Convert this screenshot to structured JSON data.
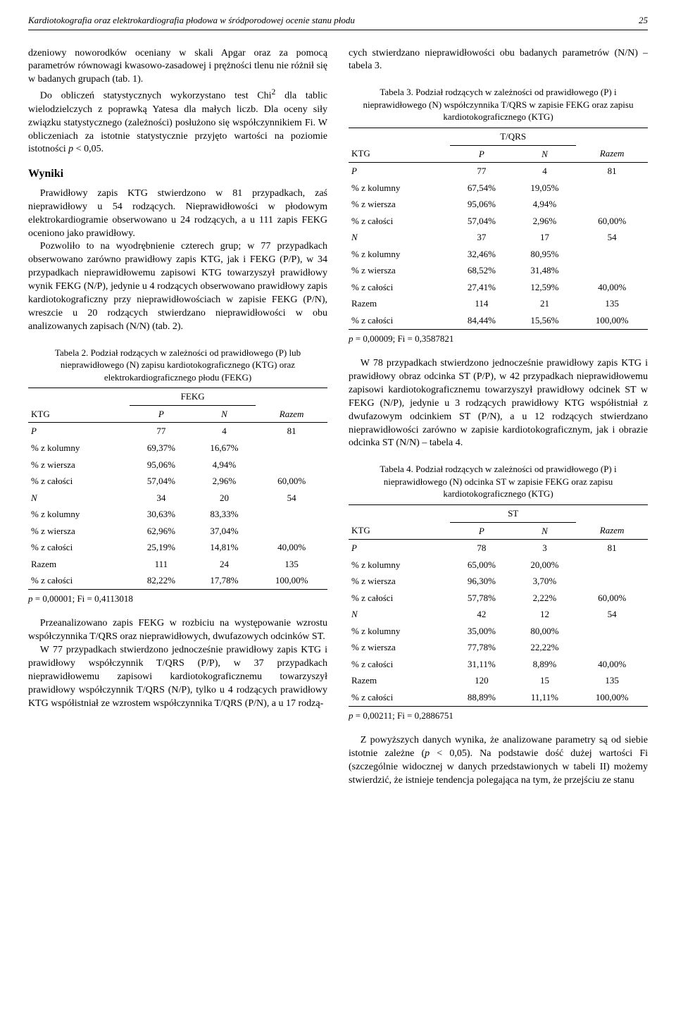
{
  "header": {
    "title": "Kardiotokografia oraz elektrokardiografia płodowa w śródporodowej ocenie stanu płodu",
    "page": "25"
  },
  "col1": {
    "para1": "dzeniowy noworodków oceniany w skali Apgar oraz za pomocą parametrów równowagi kwasowo-zasadowej i prężności tlenu nie różnił się w badanych grupach (tab. 1).",
    "para2a": "Do obliczeń statystycznych wykorzystano test Chi",
    "para2sup": "2",
    "para2b": " dla tablic wielodzielczych z poprawką Yatesa dla małych liczb. Dla oceny siły związku statystycznego (zależności) posłużono się współczynnikiem Fi. W obliczeniach za istotnie statystycznie przyjęto wartości na poziomie istotności ",
    "para2p": "p",
    "para2c": " < 0,05.",
    "wyniki_heading": "Wyniki",
    "para3": "Prawidłowy zapis KTG stwierdzono w 81 przypadkach, zaś nieprawidłowy u 54 rodzących. Nieprawidłowości w płodowym elektrokardiogramie obserwowano u 24 rodzących, a u 111 zapis FEKG oceniono jako prawidłowy.",
    "para4": "Pozwoliło to na wyodrębnienie czterech grup; w 77 przypadkach obserwowano zarówno prawidłowy zapis KTG, jak i FEKG (P/P), w 34 przypadkach nieprawidłowemu zapisowi KTG towarzyszył prawidłowy wynik FEKG (N/P), jedynie u 4 rodzących obserwowano prawidłowy zapis kardiotokograficzny przy nieprawidłowościach w zapisie FEKG (P/N), wreszcie u 20 rodzących stwierdzano nieprawidłowości w obu analizowanych zapisach (N/N) (tab. 2).",
    "table2_caption": "Tabela 2. Podział rodzących w zależności od prawidłowego (P) lub nieprawidłowego (N) zapisu kardiotokograficznego (KTG) oraz elektrokardiograficznego płodu (FEKG)",
    "table2": {
      "group_header": "FEKG",
      "header": [
        "KTG",
        "P",
        "N",
        "Razem"
      ],
      "rows": [
        [
          "P",
          "77",
          "4",
          "81"
        ],
        [
          "% z kolumny",
          "69,37%",
          "16,67%",
          ""
        ],
        [
          "% z wiersza",
          "95,06%",
          "4,94%",
          ""
        ],
        [
          "% z całości",
          "57,04%",
          "2,96%",
          "60,00%"
        ],
        [
          "N",
          "34",
          "20",
          "54"
        ],
        [
          "% z kolumny",
          "30,63%",
          "83,33%",
          ""
        ],
        [
          "% z wiersza",
          "62,96%",
          "37,04%",
          ""
        ],
        [
          "% z całości",
          "25,19%",
          "14,81%",
          "40,00%"
        ],
        [
          "Razem",
          "111",
          "24",
          "135"
        ],
        [
          "% z całości",
          "82,22%",
          "17,78%",
          "100,00%"
        ]
      ],
      "italic_rows": [
        0,
        4
      ],
      "pval_p": "p",
      "pval": " = 0,00001; Fi = 0,4113018"
    },
    "para5": "Przeanalizowano zapis FEKG w rozbiciu na występowanie wzrostu współczynnika T/QRS oraz nieprawidłowych, dwufazowych odcinków ST.",
    "para6": "W 77 przypadkach stwierdzono jednocześnie prawidłowy zapis KTG i prawidłowy współczynnik T/QRS (P/P), w 37 przypadkach nieprawidłowemu zapisowi kardiotokograficznemu towarzyszył prawidłowy współczynnik T/QRS (N/P), tylko u 4 rodzących prawidłowy KTG współistniał ze wzrostem współczynnika T/QRS (P/N), a u 17 rodzą-"
  },
  "col2": {
    "para1": "cych stwierdzano nieprawidłowości obu badanych parametrów (N/N) – tabela 3.",
    "table3_caption": "Tabela 3. Podział rodzących w zależności od prawidłowego (P) i nieprawidłowego (N) współczynnika T/QRS w zapisie FEKG oraz zapisu kardiotokograficznego (KTG)",
    "table3": {
      "group_header": "T/QRS",
      "header": [
        "KTG",
        "P",
        "N",
        "Razem"
      ],
      "rows": [
        [
          "P",
          "77",
          "4",
          "81"
        ],
        [
          "% z kolumny",
          "67,54%",
          "19,05%",
          ""
        ],
        [
          "% z wiersza",
          "95,06%",
          "4,94%",
          ""
        ],
        [
          "% z całości",
          "57,04%",
          "2,96%",
          "60,00%"
        ],
        [
          "N",
          "37",
          "17",
          "54"
        ],
        [
          "% z kolumny",
          "32,46%",
          "80,95%",
          ""
        ],
        [
          "% z wiersza",
          "68,52%",
          "31,48%",
          ""
        ],
        [
          "% z całości",
          "27,41%",
          "12,59%",
          "40,00%"
        ],
        [
          "Razem",
          "114",
          "21",
          "135"
        ],
        [
          "% z całości",
          "84,44%",
          "15,56%",
          "100,00%"
        ]
      ],
      "italic_rows": [
        0,
        4
      ],
      "pval_p": "p",
      "pval": " = 0,00009; Fi = 0,3587821"
    },
    "para2": "W 78 przypadkach stwierdzono jednocześnie prawidłowy zapis KTG i prawidłowy obraz odcinka ST (P/P), w 42 przypadkach nieprawidłowemu zapisowi kardiotokograficznemu towarzyszył prawidłowy odcinek ST w FEKG (N/P), jedynie u 3 rodzących prawidłowy KTG współistniał z dwufazowym odcinkiem ST (P/N), a u 12 rodzących stwierdzano nieprawidłowości zarówno w zapisie kardiotokograficznym, jak i obrazie odcinka ST (N/N) – tabela 4.",
    "table4_caption": "Tabela 4. Podział rodzących w zależności od prawidłowego (P) i nieprawidłowego (N) odcinka ST w zapisie FEKG oraz zapisu kardiotokograficznego (KTG)",
    "table4": {
      "group_header": "ST",
      "header": [
        "KTG",
        "P",
        "N",
        "Razem"
      ],
      "rows": [
        [
          "P",
          "78",
          "3",
          "81"
        ],
        [
          "% z kolumny",
          "65,00%",
          "20,00%",
          ""
        ],
        [
          "% z wiersza",
          "96,30%",
          "3,70%",
          ""
        ],
        [
          "% z całości",
          "57,78%",
          "2,22%",
          "60,00%"
        ],
        [
          "N",
          "42",
          "12",
          "54"
        ],
        [
          "% z kolumny",
          "35,00%",
          "80,00%",
          ""
        ],
        [
          "% z wiersza",
          "77,78%",
          "22,22%",
          ""
        ],
        [
          "% z całości",
          "31,11%",
          "8,89%",
          "40,00%"
        ],
        [
          "Razem",
          "120",
          "15",
          "135"
        ],
        [
          "% z całości",
          "88,89%",
          "11,11%",
          "100,00%"
        ]
      ],
      "italic_rows": [
        0,
        4
      ],
      "pval_p": "p",
      "pval": " = 0,00211; Fi = 0,2886751"
    },
    "para3a": "Z powyższych danych wynika, że analizowane parametry są od siebie istotnie zależne (",
    "para3p": "p",
    "para3b": " < 0,05). Na podstawie dość dużej wartości Fi (szczególnie widocznej w danych przedstawionych w tabeli II) możemy stwierdzić, że istnieje tendencja polegająca na tym, że przejściu ze stanu"
  }
}
